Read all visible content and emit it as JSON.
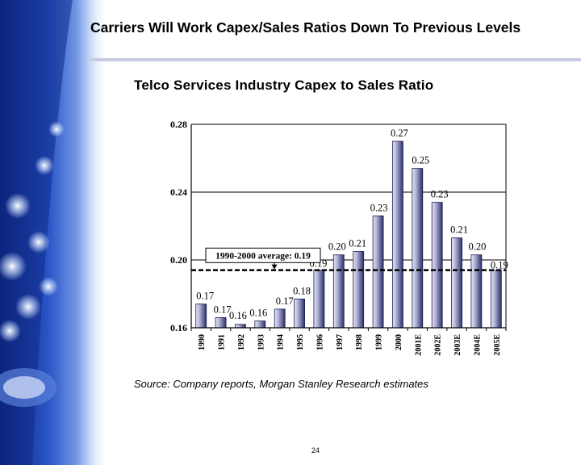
{
  "slide": {
    "title": "Carriers Will Work Capex/Sales Ratios Down To Previous Levels",
    "source": "Source: Company reports, Morgan Stanley Research estimates",
    "page_number": "24"
  },
  "colors": {
    "bar_light": "#e6e6f4",
    "bar_dark": "#2a2f6a",
    "average_line": "#000000",
    "title_rule": "#c8cbe2",
    "decor_blue": "#1b3a9a"
  },
  "decor": {
    "icon": "fiber-optic-background"
  },
  "chart_data": {
    "type": "bar",
    "title": "Telco Services Industry Capex to Sales Ratio",
    "categories": [
      "1990",
      "1991",
      "1992",
      "1993",
      "1994",
      "1995",
      "1996",
      "1997",
      "1998",
      "1999",
      "2000",
      "2001E",
      "2002E",
      "2003E",
      "2004E",
      "2005E"
    ],
    "values": [
      0.174,
      0.166,
      0.162,
      0.164,
      0.171,
      0.177,
      0.194,
      0.203,
      0.205,
      0.226,
      0.27,
      0.254,
      0.234,
      0.213,
      0.203,
      0.194
    ],
    "data_labels": [
      "0.17",
      "0.17",
      "0.16",
      "0.16",
      "0.17",
      "0.18",
      "0.19",
      "0.20",
      "0.21",
      "0.23",
      "0.27",
      "0.25",
      "0.23",
      "0.21",
      "0.20",
      "0.19"
    ],
    "ylim": [
      0.16,
      0.28
    ],
    "yticks": [
      "0.16",
      "0.20",
      "0.24",
      "0.28"
    ],
    "ytick_values": [
      0.16,
      0.2,
      0.24,
      0.28
    ],
    "grid": true,
    "average": {
      "value": 0.194,
      "label": "1990-2000 average: 0.19"
    }
  }
}
